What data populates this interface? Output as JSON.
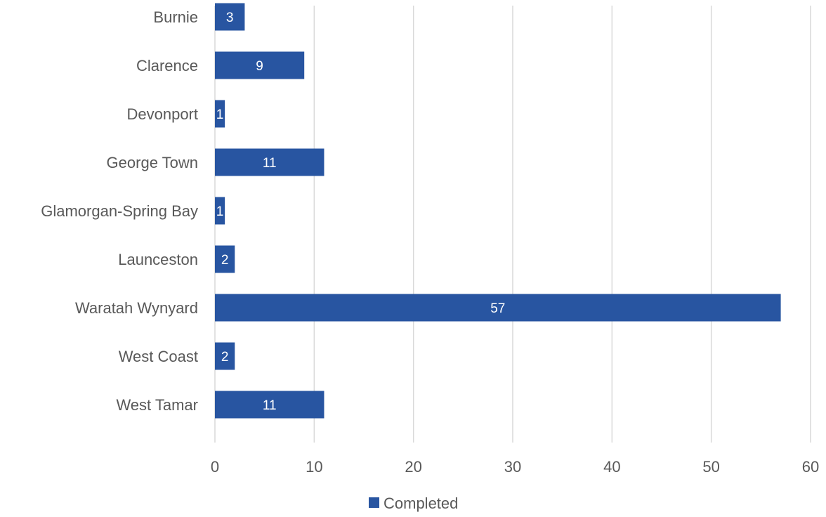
{
  "chart_data": {
    "type": "bar",
    "orientation": "horizontal",
    "categories": [
      "Burnie",
      "Clarence",
      "Devonport",
      "George Town",
      "Glamorgan-Spring Bay",
      "Launceston",
      "Waratah Wynyard",
      "West Coast",
      "West Tamar"
    ],
    "series": [
      {
        "name": "Completed",
        "values": [
          3,
          9,
          1,
          11,
          1,
          2,
          57,
          2,
          11
        ],
        "color": "#2855a1"
      }
    ],
    "xlim": [
      0,
      60
    ],
    "xticks": [
      0,
      10,
      20,
      30,
      40,
      50,
      60
    ],
    "title": "",
    "xlabel": "",
    "ylabel": "",
    "grid": "vertical",
    "legend_position": "bottom"
  }
}
